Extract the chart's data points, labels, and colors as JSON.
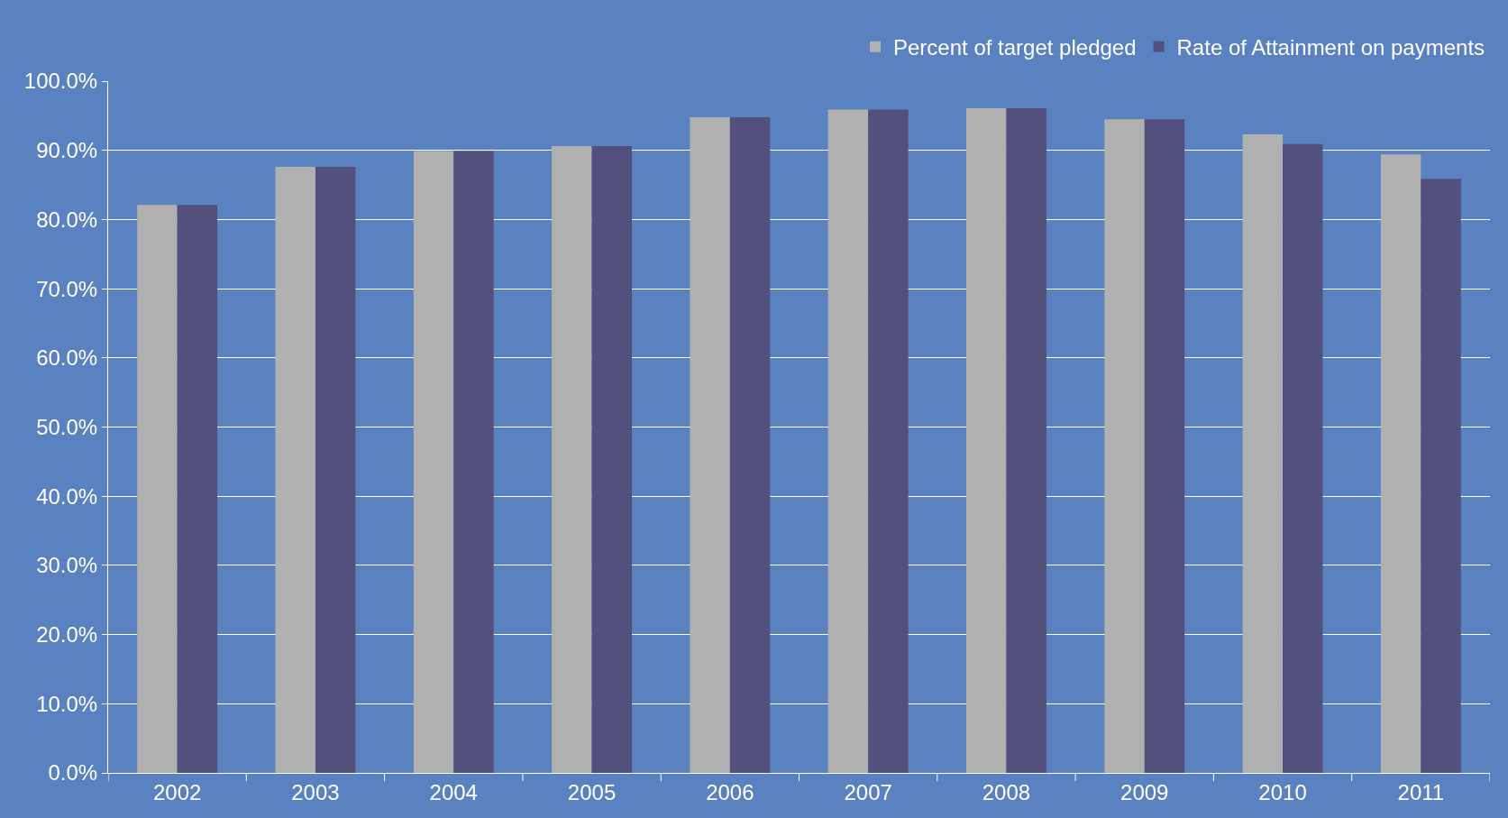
{
  "chart_data": {
    "type": "bar",
    "categories": [
      "2002",
      "2003",
      "2004",
      "2005",
      "2006",
      "2007",
      "2008",
      "2009",
      "2010",
      "2011"
    ],
    "series": [
      {
        "name": "Percent of target pledged",
        "color": "#b0b0b0",
        "values": [
          82.1,
          87.6,
          89.9,
          90.6,
          94.8,
          95.9,
          96.1,
          94.5,
          92.3,
          89.4
        ]
      },
      {
        "name": "Rate of Attainment on payments",
        "color": "#54507e",
        "values": [
          82.1,
          87.6,
          89.9,
          90.6,
          94.8,
          95.9,
          96.1,
          94.5,
          90.9,
          85.9
        ]
      }
    ],
    "ylim": [
      0,
      100
    ],
    "yticks": [
      {
        "value": 0,
        "label": "0.0%"
      },
      {
        "value": 10,
        "label": "10.0%"
      },
      {
        "value": 20,
        "label": "20.0%"
      },
      {
        "value": 30,
        "label": "30.0%"
      },
      {
        "value": 40,
        "label": "40.0%"
      },
      {
        "value": 50,
        "label": "50.0%"
      },
      {
        "value": 60,
        "label": "60.0%"
      },
      {
        "value": 70,
        "label": "70.0%"
      },
      {
        "value": 80,
        "label": "80.0%"
      },
      {
        "value": 90,
        "label": "90.0%"
      },
      {
        "value": 100,
        "label": "100.0%"
      }
    ],
    "grid": "y",
    "legend": "top right"
  }
}
